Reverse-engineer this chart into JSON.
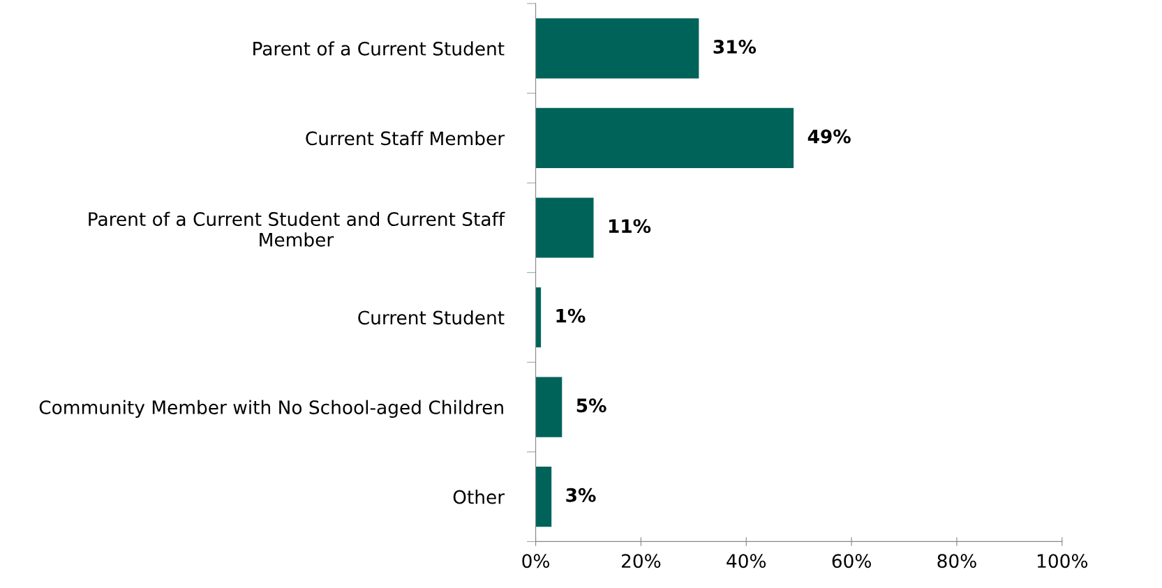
{
  "chart_data": {
    "type": "bar",
    "orientation": "horizontal",
    "categories": [
      "Parent of a Current Student",
      "Current Staff Member",
      "Parent of a Current Student and Current Staff\nMember",
      "Current Student",
      "Community Member with No School-aged Children",
      "Other"
    ],
    "values": [
      31,
      49,
      11,
      1,
      5,
      3
    ],
    "value_labels": [
      "31%",
      "49%",
      "11%",
      "1%",
      "5%",
      "3%"
    ],
    "color": "#00635a",
    "xlim": [
      0,
      100
    ],
    "xticks": [
      {
        "value": 0,
        "label": "0%"
      },
      {
        "value": 20,
        "label": "20%"
      },
      {
        "value": 40,
        "label": "40%"
      },
      {
        "value": 60,
        "label": "60%"
      },
      {
        "value": 80,
        "label": "80%"
      },
      {
        "value": 100,
        "label": "100%"
      }
    ],
    "grid": false,
    "legend": false
  }
}
